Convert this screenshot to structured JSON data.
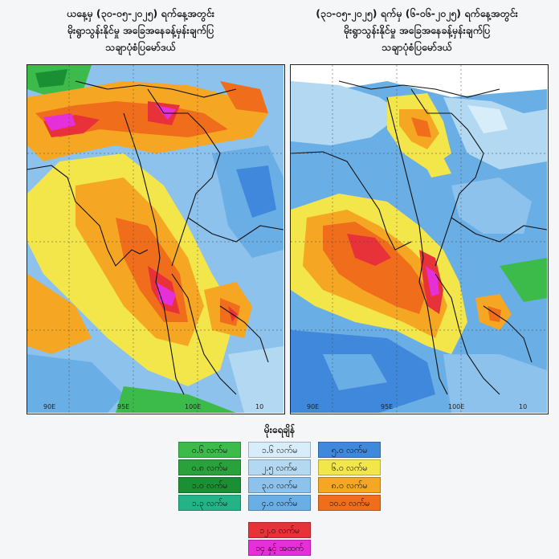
{
  "left_panel": {
    "title_lines": [
      "ယနေ့မှ (၃၀-၀၅-၂၀၂၅) ရက်နေ့အတွင်း",
      "မိုးရွာသွန်းနိုင်မှု အခြေအနေခန့်မှန်းချက်ပြ",
      "သချာပုံစံပြမော်ဒယ်"
    ],
    "lon_labels": [
      "90E",
      "95E",
      "100E",
      "10"
    ]
  },
  "right_panel": {
    "title_lines": [
      "(၃၁-၀၅-၂၀၂၅) ရက်မှ (၆-၀၆-၂၀၂၅) ရက်နေ့အတွင်း",
      "မိုးရွာသွန်းနိုင်မှု အခြေအနေခန့်မှန်းချက်ပြ",
      "သချာပုံစံပြမော်ဒယ်"
    ],
    "lon_labels": [
      "90E",
      "95E",
      "100E",
      "10"
    ]
  },
  "legend": {
    "title": "မိုးရေချိန်",
    "columns": [
      [
        {
          "label": "၀.၆ လက်မ",
          "color": "#3dbb4a"
        },
        {
          "label": "၀.၈ လက်မ",
          "color": "#2aa23b"
        },
        {
          "label": "၁.၀ လက်မ",
          "color": "#1b8f33"
        },
        {
          "label": "၁.၃ လက်မ",
          "color": "#24b287"
        }
      ],
      [
        {
          "label": "၁.၆ လက်မ",
          "color": "#d7eefa"
        },
        {
          "label": "၂.၅ လက်မ",
          "color": "#b2d8f2"
        },
        {
          "label": "၃.၀ လက်မ",
          "color": "#8cc2ec"
        },
        {
          "label": "၄.၀ လက်မ",
          "color": "#6aaee6"
        }
      ],
      [
        {
          "label": "၅.၀ လက်မ",
          "color": "#3f88dc"
        },
        {
          "label": "၆.၀ လက်မ",
          "color": "#f3e64a"
        },
        {
          "label": "၈.၀ လက်မ",
          "color": "#f5a623"
        },
        {
          "label": "၁၀.၀ လက်မ",
          "color": "#f06d1c"
        }
      ],
      [
        {
          "label": "၁၂.၀ လက်မ",
          "color": "#e8323a"
        },
        {
          "label": "၁၄ နှင့် အထက်",
          "color": "#e52fd9"
        }
      ]
    ]
  }
}
